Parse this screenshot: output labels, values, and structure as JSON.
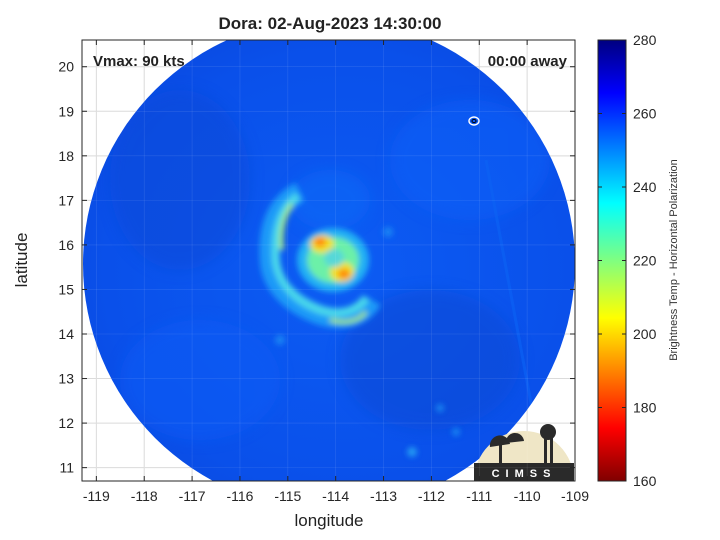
{
  "title": "Dora: 02-Aug-2023 14:30:00",
  "vmax_label": "Vmax: 90 kts",
  "time_away_label": "00:00 away",
  "xlabel": "longitude",
  "ylabel": "latitude",
  "colorbar_label": "Brightness Temp - Horizontal Polarization",
  "logo_text": "CIMSS",
  "map": {
    "lon_range": [
      -119.3,
      -109
    ],
    "lat_range": [
      10.7,
      20.6
    ],
    "lon_ticks": [
      -119,
      -118,
      -117,
      -116,
      -115,
      -114,
      -113,
      -112,
      -111,
      -110,
      -109
    ],
    "lat_ticks": [
      11,
      12,
      13,
      14,
      15,
      16,
      17,
      18,
      19,
      20
    ],
    "storm_center": {
      "lon": -114.1,
      "lat": 15.6
    },
    "background_temp": 262,
    "grid": true
  },
  "colorbar": {
    "range": [
      160,
      280
    ],
    "ticks": [
      160,
      180,
      200,
      220,
      240,
      260,
      280
    ],
    "colormap": "jet"
  },
  "colors": {
    "scene_blue": "#0a55f0",
    "frame": "#000000",
    "grid": "#d8d8d8"
  }
}
